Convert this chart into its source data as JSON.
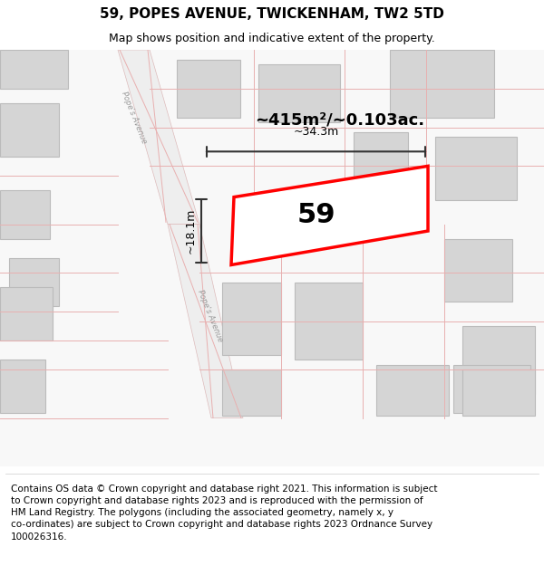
{
  "title": "59, POPES AVENUE, TWICKENHAM, TW2 5TD",
  "subtitle": "Map shows position and indicative extent of the property.",
  "footer_text": "Contains OS data © Crown copyright and database right 2021. This information is subject\nto Crown copyright and database rights 2023 and is reproduced with the permission of\nHM Land Registry. The polygons (including the associated geometry, namely x, y\nco-ordinates) are subject to Crown copyright and database rights 2023 Ordnance Survey\n100026316.",
  "map_bg": "#f5f5f5",
  "road_color": "#eeeeee",
  "road_edge": "#ddbbbb",
  "building_fill": "#d5d5d5",
  "building_edge": "#bbbbbb",
  "highlight_fill": "#ffffff",
  "highlight_edge": "#ff0000",
  "highlight_lw": 2.5,
  "area_text": "~415m²/~0.103ac.",
  "number_text": "59",
  "dim_width": "~34.3m",
  "dim_height": "~18.1m",
  "title_fontsize": 11,
  "subtitle_fontsize": 9,
  "footer_fontsize": 7.5,
  "pink_line": "#e8b0b0",
  "dim_color": "#333333"
}
